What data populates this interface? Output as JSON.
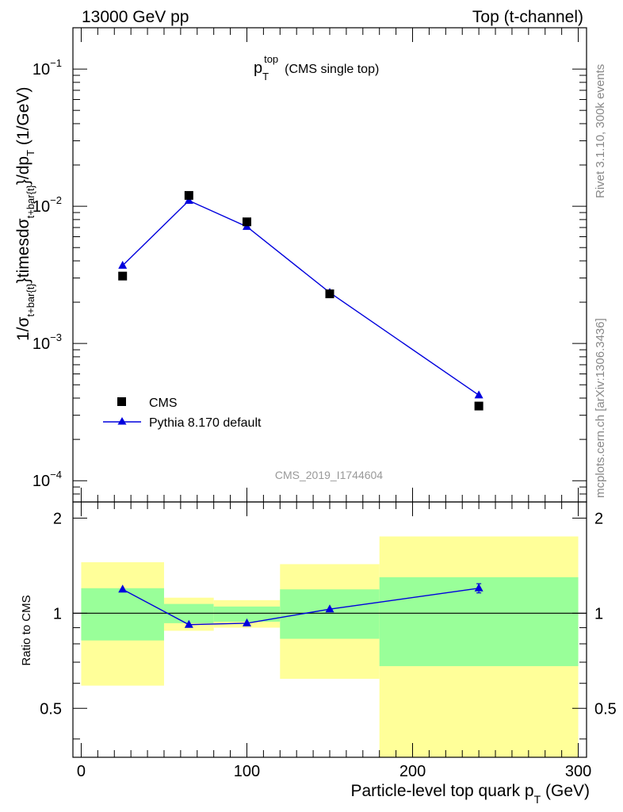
{
  "header": {
    "left": "13000 GeV pp",
    "right": "Top (t-channel)"
  },
  "plot_title": {
    "main": "p",
    "sub": "T",
    "sup": "top",
    "note": "(CMS single top)"
  },
  "y_axis_label": {
    "p1": "1/σ",
    "s1": "t+bar{t}",
    "p2": "}timesdσ",
    "s2": "t+bar{t}",
    "p3": "}/dp",
    "s3": "T",
    "p4": "  (1/GeV)"
  },
  "ratio_ylabel": "Ratio to CMS",
  "x_axis_label": {
    "main": "Particle-level top quark p",
    "sub": "T",
    "unit": " (GeV)"
  },
  "side_text": {
    "rivet": "Rivet 3.1.10,  300k events",
    "mcplots": "mcplots.cern.ch [arXiv:1306.3436]"
  },
  "watermark": "CMS_2019_I1744604",
  "legend": {
    "data": "CMS",
    "mc": "Pythia 8.170 default"
  },
  "colors": {
    "data": "#000000",
    "mc": "#0000dd",
    "band_inner": "#99ff99",
    "band_outer": "#ffff99"
  },
  "chart_data": [
    {
      "type": "scatter",
      "title": "p_T^top (CMS single top)",
      "xlabel": "Particle-level top quark p_T (GeV)",
      "ylabel": "1/σ_{t+bar{t}}}timesdσ_{t+bar{t}}}/dp_T  (1/GeV)",
      "xlim": [
        -5,
        305
      ],
      "ylim": [
        7e-05,
        0.2
      ],
      "yscale": "log",
      "y_tick_labels": [
        "10^-4",
        "10^-3",
        "10^-2",
        "10^-1"
      ],
      "series": [
        {
          "name": "CMS",
          "marker": "square",
          "x": [
            25,
            65,
            100,
            150,
            240
          ],
          "y": [
            0.0031,
            0.012,
            0.0077,
            0.0023,
            0.00035
          ]
        },
        {
          "name": "Pythia 8.170 default",
          "marker": "triangle",
          "line": true,
          "x": [
            25,
            65,
            100,
            150,
            240
          ],
          "y": [
            0.0037,
            0.011,
            0.0071,
            0.00235,
            0.00042
          ]
        }
      ]
    },
    {
      "type": "line",
      "ylabel": "Ratio to CMS",
      "xlabel": "Particle-level top quark p_T (GeV)",
      "xlim": [
        -5,
        305
      ],
      "ylim": [
        0.35,
        2.25
      ],
      "yscale": "log",
      "x_tick_labels": [
        "0",
        "100",
        "200",
        "300"
      ],
      "y_tick_labels": [
        "0.5",
        "1",
        "2"
      ],
      "bins": [
        {
          "lo": 0,
          "hi": 50,
          "inner": [
            0.82,
            1.2
          ],
          "outer": [
            0.59,
            1.45
          ]
        },
        {
          "lo": 50,
          "hi": 80,
          "inner": [
            0.93,
            1.07
          ],
          "outer": [
            0.88,
            1.12
          ]
        },
        {
          "lo": 80,
          "hi": 120,
          "inner": [
            0.94,
            1.05
          ],
          "outer": [
            0.9,
            1.1
          ]
        },
        {
          "lo": 120,
          "hi": 180,
          "inner": [
            0.83,
            1.19
          ],
          "outer": [
            0.62,
            1.43
          ]
        },
        {
          "lo": 180,
          "hi": 300,
          "inner": [
            0.68,
            1.3
          ],
          "outer": [
            0.35,
            1.75
          ]
        }
      ],
      "series": [
        {
          "name": "Pythia 8.170 default",
          "x": [
            25,
            65,
            100,
            150,
            240
          ],
          "y": [
            1.19,
            0.92,
            0.93,
            1.03,
            1.2
          ],
          "yerr": [
            0.0,
            0.0,
            0.0,
            0.0,
            0.04
          ]
        }
      ]
    }
  ]
}
